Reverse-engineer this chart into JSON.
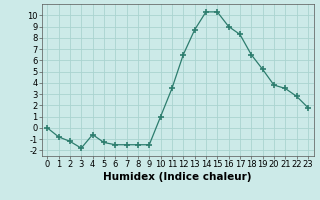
{
  "x": [
    0,
    1,
    2,
    3,
    4,
    5,
    6,
    7,
    8,
    9,
    10,
    11,
    12,
    13,
    14,
    15,
    16,
    17,
    18,
    19,
    20,
    21,
    22,
    23
  ],
  "y": [
    0,
    -0.8,
    -1.2,
    -1.8,
    -0.6,
    -1.3,
    -1.5,
    -1.5,
    -1.5,
    -1.5,
    1.0,
    3.5,
    6.5,
    8.7,
    10.3,
    10.3,
    9.0,
    8.3,
    6.5,
    5.2,
    3.8,
    3.5,
    2.8,
    1.8
  ],
  "line_color": "#2d7d6e",
  "marker": "+",
  "marker_size": 4,
  "bg_color": "#cceae8",
  "grid_color": "#aad4d0",
  "xlabel": "Humidex (Indice chaleur)",
  "ylim": [
    -2.5,
    11
  ],
  "xlim": [
    -0.5,
    23.5
  ],
  "yticks": [
    -2,
    -1,
    0,
    1,
    2,
    3,
    4,
    5,
    6,
    7,
    8,
    9,
    10
  ],
  "xticks": [
    0,
    1,
    2,
    3,
    4,
    5,
    6,
    7,
    8,
    9,
    10,
    11,
    12,
    13,
    14,
    15,
    16,
    17,
    18,
    19,
    20,
    21,
    22,
    23
  ],
  "tick_label_fontsize": 6,
  "xlabel_fontsize": 7.5,
  "xlabel_fontweight": "bold",
  "linewidth": 0.9,
  "marker_thickness": 1.2
}
